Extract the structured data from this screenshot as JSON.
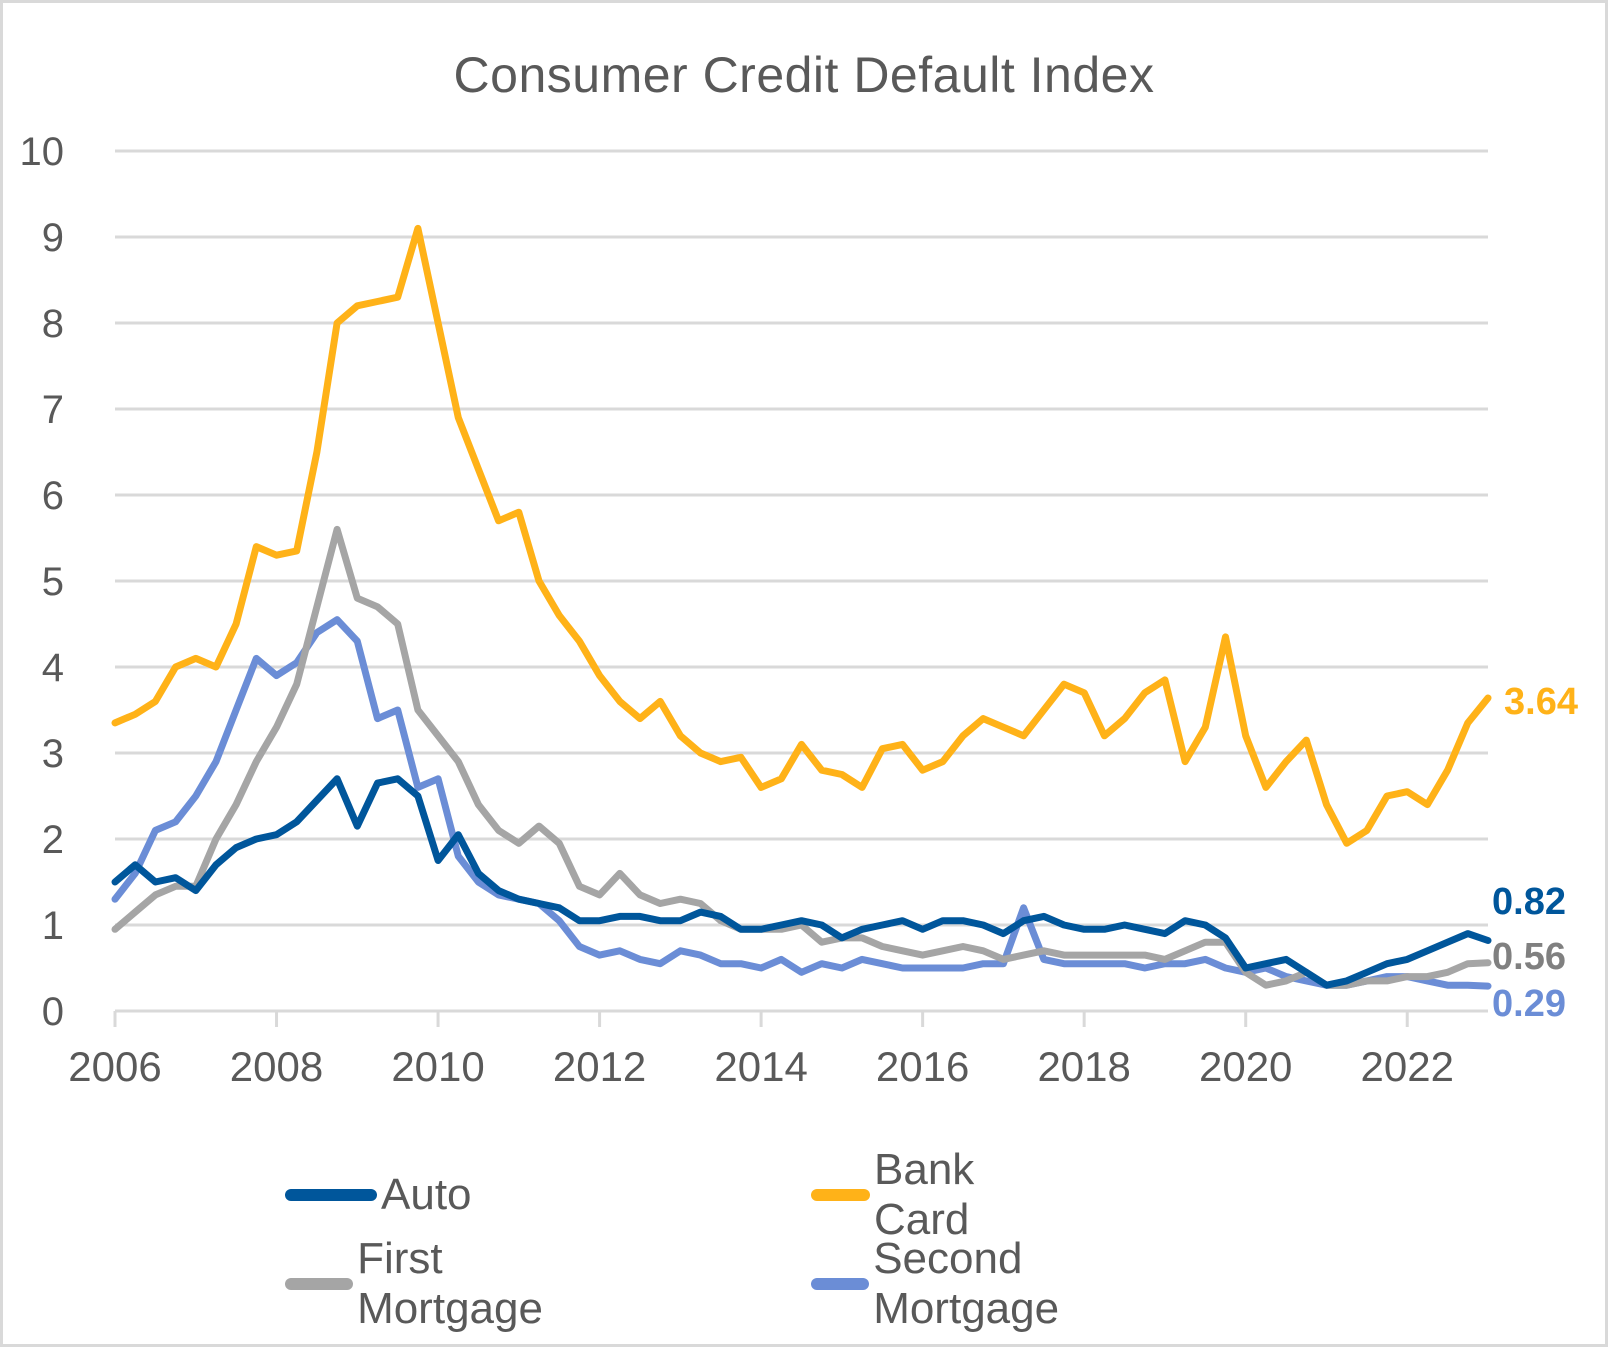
{
  "chart_data": {
    "type": "line",
    "title": "Consumer Credit Default Index",
    "xlabel": "",
    "ylabel": "",
    "ylim": [
      0,
      10
    ],
    "xlim": [
      2006,
      2023
    ],
    "yticks": [
      "0",
      "1",
      "2",
      "3",
      "4",
      "5",
      "6",
      "7",
      "8",
      "9",
      "10"
    ],
    "xticks": [
      "2006",
      "2008",
      "2010",
      "2012",
      "2014",
      "2016",
      "2018",
      "2020",
      "2022"
    ],
    "grid": true,
    "legend_position": "bottom",
    "x": [
      2006.0,
      2006.25,
      2006.5,
      2006.75,
      2007.0,
      2007.25,
      2007.5,
      2007.75,
      2008.0,
      2008.25,
      2008.5,
      2008.75,
      2009.0,
      2009.25,
      2009.5,
      2009.75,
      2010.0,
      2010.25,
      2010.5,
      2010.75,
      2011.0,
      2011.25,
      2011.5,
      2011.75,
      2012.0,
      2012.25,
      2012.5,
      2012.75,
      2013.0,
      2013.25,
      2013.5,
      2013.75,
      2014.0,
      2014.25,
      2014.5,
      2014.75,
      2015.0,
      2015.25,
      2015.5,
      2015.75,
      2016.0,
      2016.25,
      2016.5,
      2016.75,
      2017.0,
      2017.25,
      2017.5,
      2017.75,
      2018.0,
      2018.25,
      2018.5,
      2018.75,
      2019.0,
      2019.25,
      2019.5,
      2019.75,
      2020.0,
      2020.25,
      2020.5,
      2020.75,
      2021.0,
      2021.25,
      2021.5,
      2021.75,
      2022.0,
      2022.25,
      2022.5,
      2022.75,
      2023.0
    ],
    "series": [
      {
        "name": "Auto",
        "color": "#00569b",
        "end_label": "0.82",
        "values": [
          1.5,
          1.7,
          1.5,
          1.55,
          1.4,
          1.7,
          1.9,
          2.0,
          2.05,
          2.2,
          2.45,
          2.7,
          2.15,
          2.65,
          2.7,
          2.5,
          1.75,
          2.05,
          1.6,
          1.4,
          1.3,
          1.25,
          1.2,
          1.05,
          1.05,
          1.1,
          1.1,
          1.05,
          1.05,
          1.15,
          1.1,
          0.95,
          0.95,
          1.0,
          1.05,
          1.0,
          0.85,
          0.95,
          1.0,
          1.05,
          0.95,
          1.05,
          1.05,
          1.0,
          0.9,
          1.05,
          1.1,
          1.0,
          0.95,
          0.95,
          1.0,
          0.95,
          0.9,
          1.05,
          1.0,
          0.85,
          0.5,
          0.55,
          0.6,
          0.45,
          0.3,
          0.35,
          0.45,
          0.55,
          0.6,
          0.7,
          0.8,
          0.9,
          0.82
        ]
      },
      {
        "name": "Bank Card",
        "color": "#ffb218",
        "end_label": "3.64",
        "values": [
          3.35,
          3.45,
          3.6,
          4.0,
          4.1,
          4.0,
          4.5,
          5.4,
          5.3,
          5.35,
          6.5,
          8.0,
          8.2,
          8.25,
          8.3,
          9.1,
          8.0,
          6.9,
          6.3,
          5.7,
          5.8,
          5.0,
          4.6,
          4.3,
          3.9,
          3.6,
          3.4,
          3.6,
          3.2,
          3.0,
          2.9,
          2.95,
          2.6,
          2.7,
          3.1,
          2.8,
          2.75,
          2.6,
          3.05,
          3.1,
          2.8,
          2.9,
          3.2,
          3.4,
          3.3,
          3.2,
          3.5,
          3.8,
          3.7,
          3.2,
          3.4,
          3.7,
          3.85,
          2.9,
          3.3,
          4.35,
          3.2,
          2.6,
          2.9,
          3.15,
          2.4,
          1.95,
          2.1,
          2.5,
          2.55,
          2.4,
          2.8,
          3.35,
          3.64
        ]
      },
      {
        "name": "First Mortgage",
        "color": "#a5a5a5",
        "end_label": "0.56",
        "values": [
          0.95,
          1.15,
          1.35,
          1.45,
          1.45,
          2.0,
          2.4,
          2.9,
          3.3,
          3.8,
          4.7,
          5.6,
          4.8,
          4.7,
          4.5,
          3.5,
          3.2,
          2.9,
          2.4,
          2.1,
          1.95,
          2.15,
          1.95,
          1.45,
          1.35,
          1.6,
          1.35,
          1.25,
          1.3,
          1.25,
          1.05,
          0.95,
          0.95,
          0.95,
          1.0,
          0.8,
          0.85,
          0.85,
          0.75,
          0.7,
          0.65,
          0.7,
          0.75,
          0.7,
          0.6,
          0.65,
          0.7,
          0.65,
          0.65,
          0.65,
          0.65,
          0.65,
          0.6,
          0.7,
          0.8,
          0.8,
          0.45,
          0.3,
          0.35,
          0.45,
          0.3,
          0.3,
          0.35,
          0.35,
          0.4,
          0.4,
          0.45,
          0.55,
          0.56
        ]
      },
      {
        "name": "Second Mortgage",
        "color": "#6b8dd6",
        "end_label": "0.29",
        "values": [
          1.3,
          1.6,
          2.1,
          2.2,
          2.5,
          2.9,
          3.5,
          4.1,
          3.9,
          4.05,
          4.4,
          4.55,
          4.3,
          3.4,
          3.5,
          2.6,
          2.7,
          1.8,
          1.5,
          1.35,
          1.3,
          1.25,
          1.05,
          0.75,
          0.65,
          0.7,
          0.6,
          0.55,
          0.7,
          0.65,
          0.55,
          0.55,
          0.5,
          0.6,
          0.45,
          0.55,
          0.5,
          0.6,
          0.55,
          0.5,
          0.5,
          0.5,
          0.5,
          0.55,
          0.55,
          1.2,
          0.6,
          0.55,
          0.55,
          0.55,
          0.55,
          0.5,
          0.55,
          0.55,
          0.6,
          0.5,
          0.45,
          0.5,
          0.4,
          0.35,
          0.3,
          0.3,
          0.35,
          0.4,
          0.4,
          0.35,
          0.3,
          0.3,
          0.29
        ]
      }
    ]
  },
  "legend": [
    {
      "label": "Auto",
      "color": "#00569b"
    },
    {
      "label": "Bank Card",
      "color": "#ffb218"
    },
    {
      "label": "First Mortgage",
      "color": "#a5a5a5"
    },
    {
      "label": "Second Mortgage",
      "color": "#6b8dd6"
    }
  ]
}
